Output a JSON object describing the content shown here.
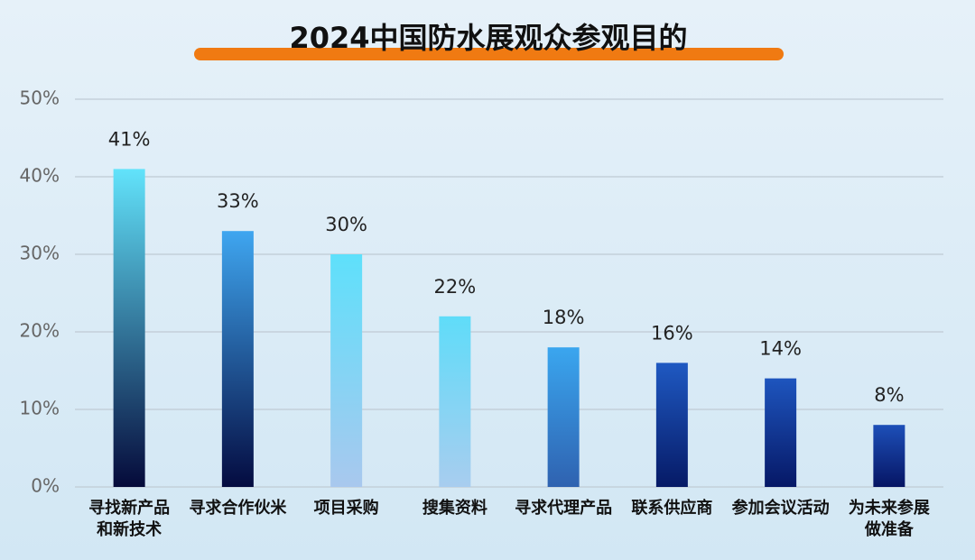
{
  "chart_data": {
    "type": "bar",
    "title": "2024中国防水展观众参观目的",
    "categories": [
      "寻找新产品和新技术",
      "寻求合作伙米",
      "项目采购",
      "搜集资料",
      "寻求代理产品",
      "联系供应商",
      "参加会议活动",
      "为未来参展做准备"
    ],
    "values": [
      41,
      33,
      30,
      22,
      18,
      16,
      14,
      8
    ],
    "value_labels": [
      "41%",
      "33%",
      "30%",
      "22%",
      "18%",
      "16%",
      "14%",
      "8%"
    ],
    "colors": [
      [
        "#62e3fb",
        "#050a3a"
      ],
      [
        "#3fa6f0",
        "#040b40"
      ],
      [
        "#5ee0fb",
        "#a9c8ee"
      ],
      [
        "#5fdcf9",
        "#a8cdef"
      ],
      [
        "#3aa6ef",
        "#2f62b0"
      ],
      [
        "#1f59c2",
        "#061a66"
      ],
      [
        "#1e55be",
        "#061866"
      ],
      [
        "#1d4fb8",
        "#061564"
      ]
    ],
    "ylim": [
      0,
      50
    ],
    "yticks": [
      {
        "value": 0,
        "label": "0%"
      },
      {
        "value": 10,
        "label": "10%"
      },
      {
        "value": 20,
        "label": "20%"
      },
      {
        "value": 30,
        "label": "30%"
      },
      {
        "value": 40,
        "label": "40%"
      },
      {
        "value": 50,
        "label": "50%"
      }
    ],
    "grid": true
  }
}
